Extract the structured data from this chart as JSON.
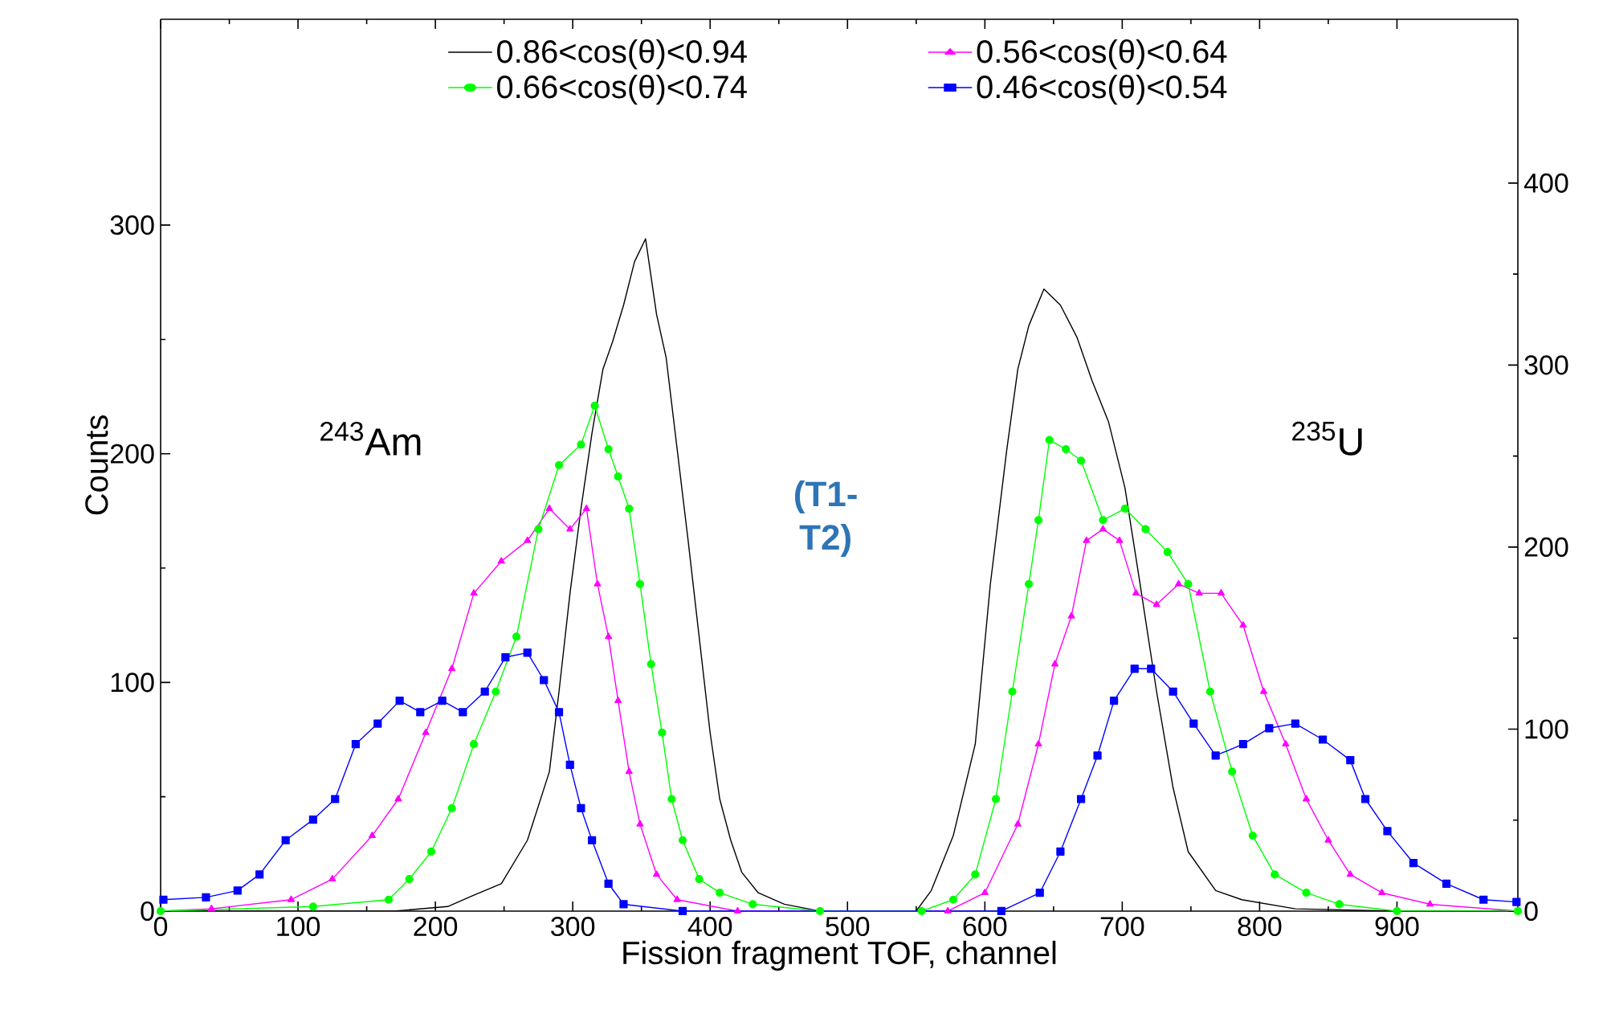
{
  "chart_data": {
    "type": "line",
    "xlabel": "Fission fragment TOF, channel",
    "ylabel": "Counts",
    "xlim": [
      0,
      988
    ],
    "xticks": [
      0,
      100,
      200,
      300,
      400,
      500,
      600,
      700,
      800,
      900
    ],
    "ylim": [
      0,
      390
    ],
    "yticks": [
      0,
      100,
      200,
      300
    ],
    "y2lim": [
      0,
      490
    ],
    "y2ticks": [
      0,
      100,
      200,
      300,
      400
    ],
    "legend": "top",
    "line_style": "solid",
    "annotations": [
      "$^{243}$Am",
      "$^{235}$U",
      "(T1-T2)"
    ],
    "series": [
      {
        "name": "0.86<cos(θ)<0.94",
        "color": "#000000",
        "marker": "none",
        "x": [
          0,
          170,
          209,
          228,
          248,
          267,
          283,
          290,
          298,
          306,
          314,
          322,
          329,
          337,
          345,
          353,
          361,
          368,
          376,
          384,
          392,
          400,
          407,
          415,
          423,
          435,
          454,
          480,
          550,
          561,
          577,
          593,
          604,
          616,
          624,
          632,
          643,
          655,
          667,
          678,
          690,
          702,
          713,
          725,
          737,
          748,
          768,
          787,
          826,
          900,
          988
        ],
        "values": [
          0,
          0,
          2,
          7,
          12,
          31,
          61,
          96,
          139,
          176,
          209,
          237,
          249,
          265,
          284,
          294,
          261,
          242,
          202,
          162,
          120,
          78,
          49,
          31,
          17,
          8,
          3,
          0,
          0,
          9,
          33,
          73,
          143,
          202,
          237,
          256,
          272,
          265,
          251,
          232,
          214,
          185,
          143,
          96,
          54,
          26,
          9,
          5,
          1,
          0,
          0
        ]
      },
      {
        "name": "0.56<cos(θ)<0.64",
        "color": "#ff00ff",
        "marker": "triangle",
        "x": [
          0,
          37,
          95,
          125,
          154,
          173,
          193,
          212,
          228,
          248,
          267,
          283,
          298,
          310,
          318,
          326,
          333,
          341,
          349,
          361,
          376,
          420,
          573,
          600,
          624,
          639,
          651,
          663,
          674,
          686,
          698,
          710,
          725,
          741,
          756,
          772,
          788,
          803,
          819,
          834,
          850,
          866,
          889,
          924,
          988
        ],
        "values": [
          0,
          1,
          5,
          14,
          33,
          49,
          78,
          106,
          139,
          153,
          162,
          176,
          167,
          176,
          143,
          120,
          92,
          61,
          38,
          16,
          5,
          0,
          0,
          8,
          38,
          73,
          108,
          129,
          162,
          167,
          162,
          139,
          134,
          143,
          139,
          139,
          125,
          96,
          73,
          49,
          31,
          16,
          8,
          3,
          0
        ]
      },
      {
        "name": "0.66<cos(θ)<0.74",
        "color": "#00ff00",
        "marker": "circle",
        "x": [
          0,
          111,
          166,
          181,
          197,
          212,
          228,
          244,
          259,
          275,
          290,
          306,
          316,
          326,
          333,
          341,
          349,
          357,
          365,
          372,
          380,
          392,
          407,
          431,
          480,
          554,
          577,
          593,
          608,
          620,
          632,
          639,
          647,
          659,
          670,
          686,
          702,
          717,
          733,
          748,
          764,
          780,
          795,
          811,
          834,
          858,
          900,
          988
        ],
        "values": [
          0,
          2,
          5,
          14,
          26,
          45,
          73,
          96,
          120,
          167,
          195,
          204,
          221,
          202,
          190,
          176,
          143,
          108,
          78,
          49,
          31,
          14,
          8,
          3,
          0,
          0,
          5,
          16,
          49,
          96,
          143,
          171,
          206,
          202,
          197,
          171,
          176,
          167,
          157,
          143,
          96,
          61,
          33,
          16,
          8,
          3,
          0,
          0
        ]
      },
      {
        "name": "0.46<cos(θ)<0.54",
        "color": "#0000ff",
        "marker": "square",
        "x": [
          2,
          33,
          56,
          72,
          91,
          111,
          127,
          142,
          158,
          174,
          189,
          205,
          220,
          236,
          251,
          267,
          279,
          290,
          298,
          306,
          314,
          326,
          337,
          380,
          612,
          640,
          655,
          670,
          682,
          694,
          709,
          721,
          737,
          752,
          768,
          788,
          807,
          826,
          846,
          866,
          877,
          893,
          912,
          936,
          963,
          987
        ],
        "values": [
          5,
          6,
          9,
          16,
          31,
          40,
          49,
          73,
          82,
          92,
          87,
          92,
          87,
          96,
          111,
          113,
          101,
          87,
          64,
          45,
          31,
          12,
          3,
          0,
          0,
          8,
          26,
          49,
          68,
          92,
          106,
          106,
          96,
          82,
          68,
          73,
          80,
          82,
          75,
          66,
          49,
          35,
          21,
          12,
          5,
          4
        ]
      }
    ]
  }
}
